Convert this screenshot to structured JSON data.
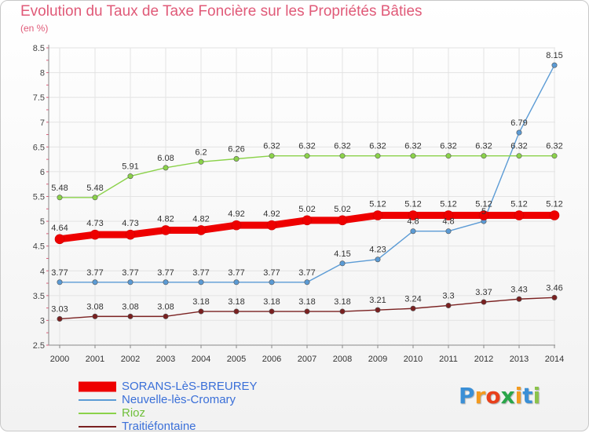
{
  "header": {
    "title": "Evolution du Taux de Taxe Foncière sur les Propriétés Bâties",
    "subtitle": "(en %)"
  },
  "logo": {
    "text": "Proxiti",
    "letter_colors": [
      "#3a8fd6",
      "#f39a1f",
      "#e8401c",
      "#2aa64a",
      "#f39a1f",
      "#3a8fd6",
      "#8bc34a"
    ]
  },
  "chart_data": {
    "type": "line",
    "x": [
      "2000",
      "2001",
      "2002",
      "2003",
      "2004",
      "2005",
      "2006",
      "2007",
      "2008",
      "2009",
      "2010",
      "2011",
      "2012",
      "2013",
      "2014"
    ],
    "ylim": [
      2.5,
      8.5
    ],
    "yticks": [
      2.5,
      3,
      3.5,
      4,
      4.5,
      5,
      5.5,
      6,
      6.5,
      7,
      7.5,
      8,
      8.5
    ],
    "grid": true,
    "legend_position": "bottom-left",
    "series": [
      {
        "name": "SORANS-LèS-BREUREY",
        "color": "#ee0000",
        "values": [
          4.64,
          4.73,
          4.73,
          4.82,
          4.82,
          4.92,
          4.92,
          5.02,
          5.02,
          5.12,
          5.12,
          5.12,
          5.12,
          5.12,
          5.12
        ],
        "labels": [
          "4.64",
          "4.73",
          "4.73",
          "4.82",
          "4.82",
          "4.92",
          "4.92",
          "5.02",
          "5.02",
          "5.12",
          "5.12",
          "5.12",
          "5.12",
          "5.12",
          "5.12"
        ]
      },
      {
        "name": "Neuvelle-lès-Cromary",
        "color": "#5b9bd5",
        "values": [
          3.77,
          3.77,
          3.77,
          3.77,
          3.77,
          3.77,
          3.77,
          3.77,
          4.15,
          4.23,
          4.8,
          4.8,
          5.0,
          6.79,
          8.15
        ],
        "labels": [
          "3.77",
          "3.77",
          "3.77",
          "3.77",
          "3.77",
          "3.77",
          "3.77",
          "3.77",
          "4.15",
          "4.23",
          "4.8",
          "4.8",
          "5",
          "6.79",
          "8.15"
        ]
      },
      {
        "name": "Rioz",
        "color": "#8bd24a",
        "values": [
          5.48,
          5.48,
          5.91,
          6.08,
          6.2,
          6.26,
          6.32,
          6.32,
          6.32,
          6.32,
          6.32,
          6.32,
          6.32,
          6.32,
          6.32
        ],
        "labels": [
          "5.48",
          "5.48",
          "5.91",
          "6.08",
          "6.2",
          "6.26",
          "6.32",
          "6.32",
          "6.32",
          "6.32",
          "6.32",
          "6.32",
          "6.32",
          "6.32",
          "6.32"
        ]
      },
      {
        "name": "Traitiéfontaine",
        "color": "#7a2020",
        "values": [
          3.03,
          3.08,
          3.08,
          3.08,
          3.18,
          3.18,
          3.18,
          3.18,
          3.18,
          3.21,
          3.24,
          3.3,
          3.37,
          3.43,
          3.46
        ],
        "labels": [
          "3.03",
          "3.08",
          "3.08",
          "3.08",
          "3.18",
          "3.18",
          "3.18",
          "3.18",
          "3.18",
          "3.21",
          "3.24",
          "3.3",
          "3.37",
          "3.43",
          "3.46"
        ]
      }
    ]
  }
}
